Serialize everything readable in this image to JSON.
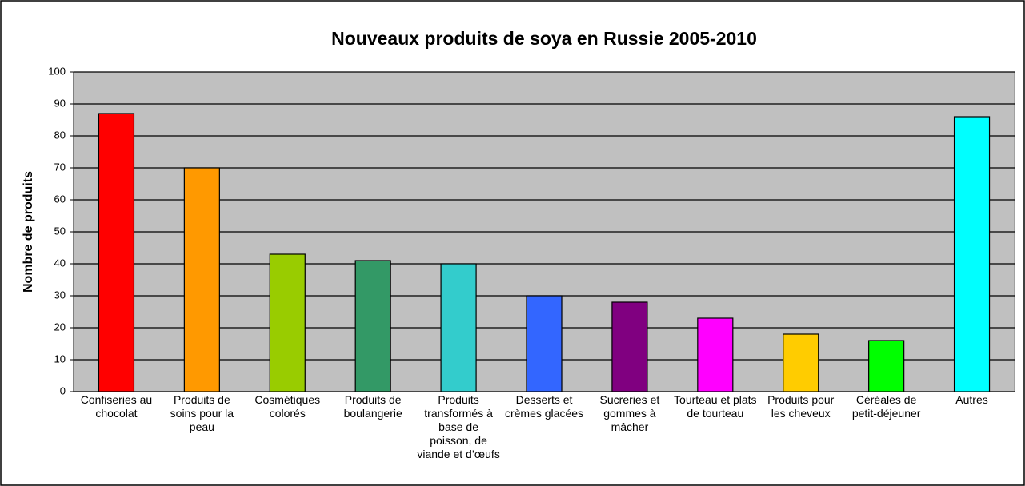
{
  "chart_data": {
    "type": "bar",
    "title": "Nouveaux produits de soya en Russie 2005-2010",
    "y_label": "Nombre de produits",
    "categories": [
      "Confiseries au chocolat",
      "Produits de soins pour la peau",
      "Cosmétiques colorés",
      "Produits de boulangerie",
      "Produits transformés à base de poisson, de viande et d’œufs",
      "Desserts et crèmes glacées",
      "Sucreries et gommes à mâcher",
      "Tourteau et plats de tourteau",
      "Produits pour les cheveux",
      "Céréales de petit-déjeuner",
      "Autres"
    ],
    "values": [
      87,
      70,
      43,
      41,
      40,
      30,
      28,
      23,
      18,
      16,
      86
    ],
    "colors": [
      "#ff0000",
      "#ff9900",
      "#99cc00",
      "#339966",
      "#33cccc",
      "#3366ff",
      "#800080",
      "#ff00ff",
      "#ffcc00",
      "#00ff00",
      "#00ffff"
    ],
    "ylim": [
      0,
      100
    ],
    "yticks": [
      0,
      10,
      20,
      30,
      40,
      50,
      60,
      70,
      80,
      90,
      100
    ],
    "grid": true
  }
}
